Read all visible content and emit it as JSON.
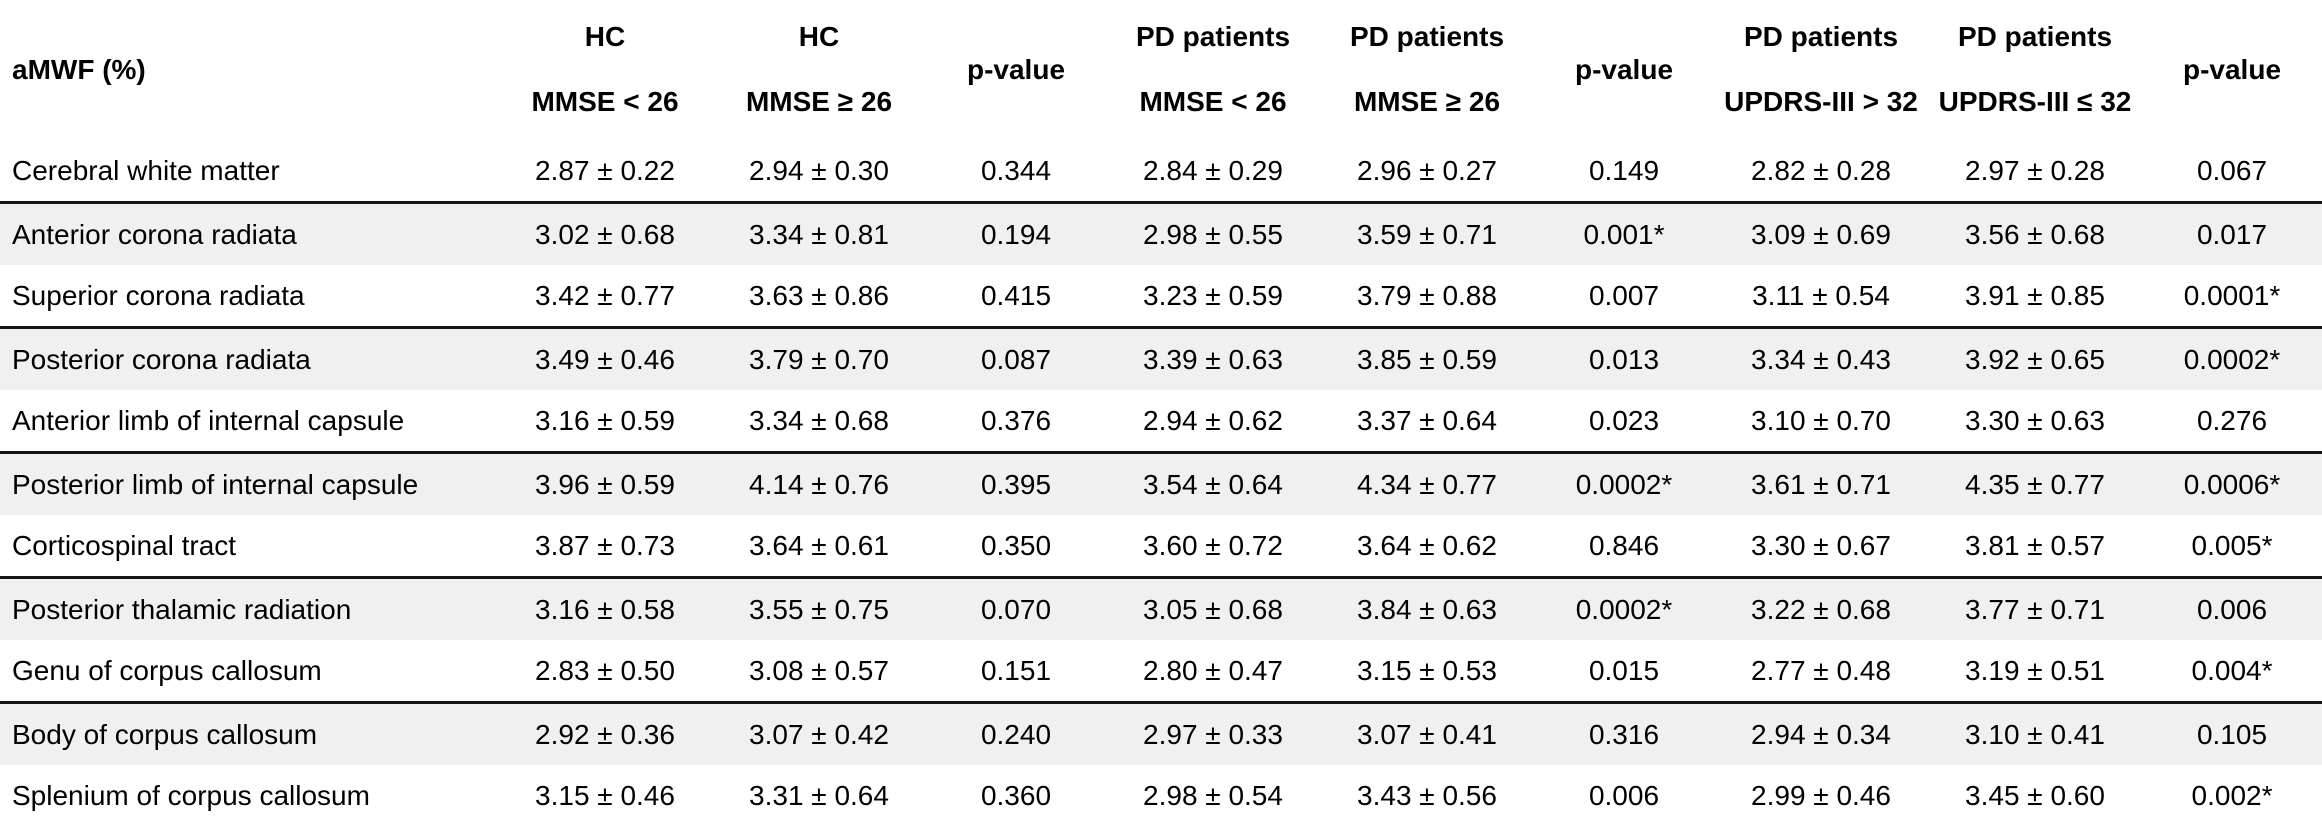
{
  "colors": {
    "background": "#ffffff",
    "stripe": "#f0f0f0",
    "rule": "#151515",
    "text": "#000000"
  },
  "table": {
    "corner_label": "aMWF (%)",
    "columns": [
      {
        "type": "value",
        "top": "HC",
        "bottom": "MMSE < 26"
      },
      {
        "type": "value",
        "top": "HC",
        "bottom": "MMSE ≥ 26"
      },
      {
        "type": "pvalue",
        "label": "p-value"
      },
      {
        "type": "value",
        "top": "PD patients",
        "bottom": "MMSE < 26"
      },
      {
        "type": "value",
        "top": "PD patients",
        "bottom": "MMSE ≥ 26"
      },
      {
        "type": "pvalue",
        "label": "p-value"
      },
      {
        "type": "value",
        "top": "PD patients",
        "bottom": "UPDRS-III > 32"
      },
      {
        "type": "value",
        "top": "PD patients",
        "bottom": "UPDRS-III ≤ 32"
      },
      {
        "type": "pvalue",
        "label": "p-value"
      }
    ],
    "rows": [
      {
        "label": "Cerebral white matter",
        "shaded": false,
        "values": [
          "2.87 ± 0.22",
          "2.94 ± 0.30",
          "0.344",
          "2.84 ± 0.29",
          "2.96 ± 0.27",
          "0.149",
          "2.82 ± 0.28",
          "2.97 ± 0.28",
          "0.067"
        ]
      },
      {
        "label": "Anterior corona radiata",
        "shaded": true,
        "values": [
          "3.02 ± 0.68",
          "3.34 ± 0.81",
          "0.194",
          "2.98 ± 0.55",
          "3.59 ± 0.71",
          "0.001*",
          "3.09 ± 0.69",
          "3.56 ± 0.68",
          "0.017"
        ]
      },
      {
        "label": "Superior corona radiata",
        "shaded": false,
        "values": [
          "3.42 ± 0.77",
          "3.63 ± 0.86",
          "0.415",
          "3.23 ± 0.59",
          "3.79 ± 0.88",
          "0.007",
          "3.11 ± 0.54",
          "3.91 ± 0.85",
          "0.0001*"
        ]
      },
      {
        "label": "Posterior corona radiata",
        "shaded": true,
        "values": [
          "3.49 ± 0.46",
          "3.79 ± 0.70",
          "0.087",
          "3.39 ± 0.63",
          "3.85 ± 0.59",
          "0.013",
          "3.34 ± 0.43",
          "3.92 ± 0.65",
          "0.0002*"
        ]
      },
      {
        "label": "Anterior limb of internal capsule",
        "shaded": false,
        "values": [
          "3.16 ± 0.59",
          "3.34 ± 0.68",
          "0.376",
          "2.94 ± 0.62",
          "3.37 ± 0.64",
          "0.023",
          "3.10 ± 0.70",
          "3.30 ± 0.63",
          "0.276"
        ]
      },
      {
        "label": "Posterior limb of internal capsule",
        "shaded": true,
        "values": [
          "3.96 ± 0.59",
          "4.14 ± 0.76",
          "0.395",
          "3.54 ± 0.64",
          "4.34 ± 0.77",
          "0.0002*",
          "3.61 ± 0.71",
          "4.35 ± 0.77",
          "0.0006*"
        ]
      },
      {
        "label": "Corticospinal tract",
        "shaded": false,
        "values": [
          "3.87 ± 0.73",
          "3.64 ± 0.61",
          "0.350",
          "3.60 ± 0.72",
          "3.64 ± 0.62",
          "0.846",
          "3.30 ± 0.67",
          "3.81 ± 0.57",
          "0.005*"
        ]
      },
      {
        "label": "Posterior thalamic radiation",
        "shaded": true,
        "values": [
          "3.16 ± 0.58",
          "3.55 ± 0.75",
          "0.070",
          "3.05 ± 0.68",
          "3.84 ± 0.63",
          "0.0002*",
          "3.22 ± 0.68",
          "3.77 ± 0.71",
          "0.006"
        ]
      },
      {
        "label": "Genu of corpus callosum",
        "shaded": false,
        "values": [
          "2.83 ± 0.50",
          "3.08 ± 0.57",
          "0.151",
          "2.80 ± 0.47",
          "3.15 ± 0.53",
          "0.015",
          "2.77 ± 0.48",
          "3.19 ± 0.51",
          "0.004*"
        ]
      },
      {
        "label": "Body of corpus callosum",
        "shaded": true,
        "values": [
          "2.92 ± 0.36",
          "3.07 ± 0.42",
          "0.240",
          "2.97 ± 0.33",
          "3.07 ± 0.41",
          "0.316",
          "2.94 ± 0.34",
          "3.10 ± 0.41",
          "0.105"
        ]
      },
      {
        "label": "Splenium of corpus callosum",
        "shaded": false,
        "values": [
          "3.15 ± 0.46",
          "3.31 ± 0.64",
          "0.360",
          "2.98 ± 0.54",
          "3.43 ± 0.56",
          "0.006",
          "2.99 ± 0.46",
          "3.45 ± 0.60",
          "0.002*"
        ]
      }
    ]
  }
}
